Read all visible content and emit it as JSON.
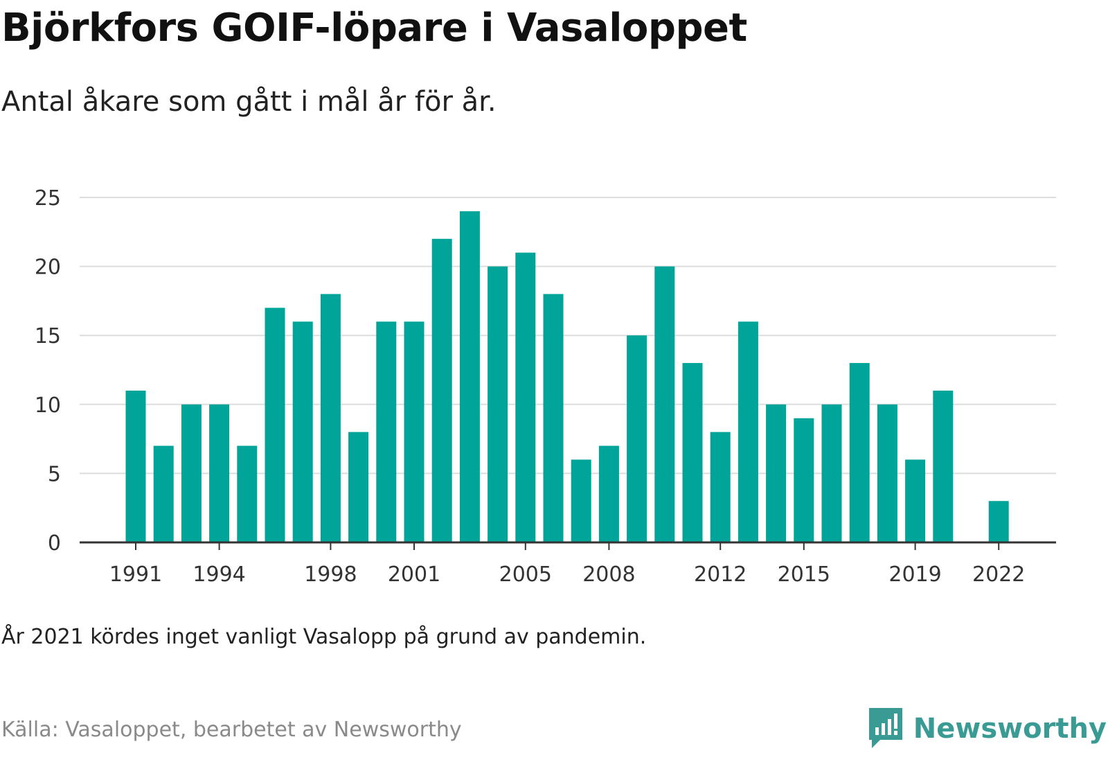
{
  "title": "Björkfors GOIF-löpare i Vasaloppet",
  "subtitle": "Antal åkare som gått i mål år för år.",
  "note": "År 2021 kördes inget vanligt Vasalopp på grund av pandemin.",
  "source": "Källa: Vasaloppet, bearbetet av Newsworthy",
  "brand": {
    "name": "Newsworthy",
    "icon": "newsworthy-logo-icon"
  },
  "colors": {
    "bar": "#00a499",
    "grid": "#dddddd",
    "axis": "#333333",
    "brand": "#3a9a94"
  },
  "chart_data": {
    "type": "bar",
    "categories": [
      1991,
      1992,
      1993,
      1994,
      1995,
      1996,
      1997,
      1998,
      1999,
      2000,
      2001,
      2002,
      2003,
      2004,
      2005,
      2006,
      2007,
      2008,
      2009,
      2010,
      2011,
      2012,
      2013,
      2014,
      2015,
      2016,
      2017,
      2018,
      2019,
      2020,
      2021,
      2022
    ],
    "values": [
      11,
      7,
      10,
      10,
      7,
      17,
      16,
      18,
      8,
      16,
      16,
      22,
      24,
      20,
      21,
      18,
      6,
      7,
      15,
      20,
      13,
      8,
      16,
      10,
      9,
      10,
      13,
      10,
      6,
      11,
      null,
      3
    ],
    "x_tick_labels": [
      "1991",
      "1994",
      "1998",
      "2001",
      "2005",
      "2008",
      "2012",
      "2015",
      "2019",
      "2022"
    ],
    "y_ticks": [
      0,
      5,
      10,
      15,
      20,
      25
    ],
    "ylim": [
      0,
      25
    ],
    "grid": true,
    "legend": "none"
  }
}
